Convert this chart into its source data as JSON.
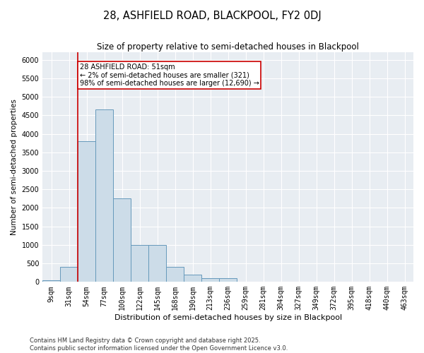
{
  "title1": "28, ASHFIELD ROAD, BLACKPOOL, FY2 0DJ",
  "title2": "Size of property relative to semi-detached houses in Blackpool",
  "xlabel": "Distribution of semi-detached houses by size in Blackpool",
  "ylabel": "Number of semi-detached properties",
  "categories": [
    "9sqm",
    "31sqm",
    "54sqm",
    "77sqm",
    "100sqm",
    "122sqm",
    "145sqm",
    "168sqm",
    "190sqm",
    "213sqm",
    "236sqm",
    "259sqm",
    "281sqm",
    "304sqm",
    "327sqm",
    "349sqm",
    "372sqm",
    "395sqm",
    "418sqm",
    "440sqm",
    "463sqm"
  ],
  "values": [
    50,
    400,
    3800,
    4650,
    2250,
    1000,
    1000,
    400,
    200,
    100,
    100,
    0,
    0,
    0,
    0,
    0,
    0,
    0,
    0,
    0,
    0
  ],
  "bar_color": "#ccdce8",
  "bar_edge_color": "#6699bb",
  "annotation_text": "28 ASHFIELD ROAD: 51sqm\n← 2% of semi-detached houses are smaller (321)\n98% of semi-detached houses are larger (12,690) →",
  "annotation_box_color": "#ffffff",
  "annotation_box_edge_color": "#cc0000",
  "vline_color": "#cc0000",
  "ylim": [
    0,
    6200
  ],
  "yticks": [
    0,
    500,
    1000,
    1500,
    2000,
    2500,
    3000,
    3500,
    4000,
    4500,
    5000,
    5500,
    6000
  ],
  "background_color": "#e8edf2",
  "grid_color": "#ffffff",
  "footer": "Contains HM Land Registry data © Crown copyright and database right 2025.\nContains public sector information licensed under the Open Government Licence v3.0.",
  "title1_fontsize": 10.5,
  "title2_fontsize": 8.5,
  "xlabel_fontsize": 8,
  "ylabel_fontsize": 7.5,
  "tick_fontsize": 7,
  "annotation_fontsize": 7,
  "footer_fontsize": 6
}
